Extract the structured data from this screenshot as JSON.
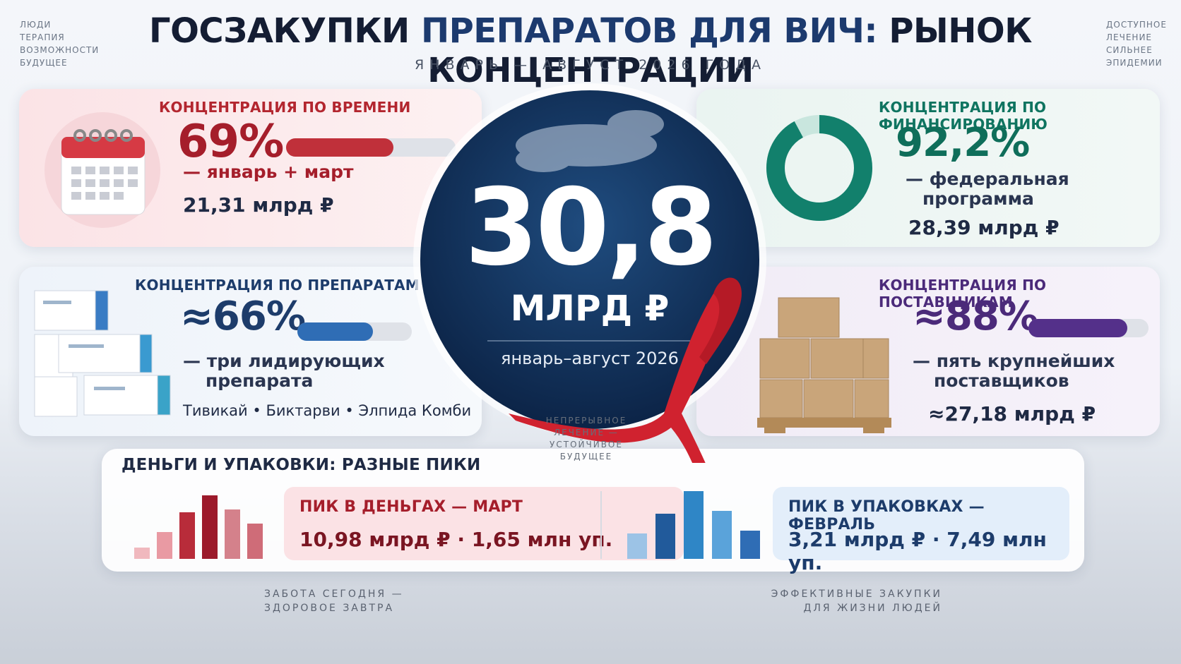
{
  "header": {
    "side_left": [
      "ЛЮДИ",
      "ТЕРАПИЯ",
      "ВОЗМОЖНОСТИ",
      "БУДУЩЕЕ"
    ],
    "side_right": [
      "ДОСТУПНОЕ",
      "ЛЕЧЕНИЕ",
      "СИЛЬНЕЕ",
      "ЭПИДЕМИИ"
    ],
    "title_part1": "ГОСЗАКУПКИ",
    "title_part2": "ПРЕПАРАТОВ ДЛЯ ВИЧ:",
    "title_part3": "РЫНОК КОНЦЕНТРАЦИИ",
    "subtitle": "ЯНВАРЬ — АВГУСТ 2026 ГОДА"
  },
  "center": {
    "value": "30,8",
    "unit": "МЛРД ₽",
    "period": "январь–август 2026",
    "motto": [
      "НЕПРЕРЫВНОЕ",
      "ЛЕЧЕНИЕ —",
      "УСТОЙЧИВОЕ",
      "БУДУЩЕЕ"
    ]
  },
  "cards": {
    "time": {
      "heading": "КОНЦЕНТРАЦИЯ ПО ВРЕМЕНИ",
      "value": "69%",
      "description": [
        "— январь + март"
      ],
      "amount": "21,31 млрд ₽"
    },
    "funding": {
      "heading": "КОНЦЕНТРАЦИЯ ПО ФИНАНСИРОВАНИЮ",
      "value": "92,2%",
      "description": [
        "— федеральная",
        "программа"
      ],
      "amount": "28,39 млрд ₽"
    },
    "drugs": {
      "heading": "КОНЦЕНТРАЦИЯ ПО ПРЕПАРАТАМ",
      "value": "≈66%",
      "description": [
        "— три лидирующих",
        "препарата"
      ],
      "items": [
        "Тивикай",
        "Биктарви",
        "Элпида Комби"
      ]
    },
    "suppliers": {
      "heading": "КОНЦЕНТРАЦИЯ ПО ПОСТАВЩИКАМ",
      "value": "≈88%",
      "description": [
        "— пять крупнейших",
        "поставщиков"
      ],
      "amount": "≈27,18 млрд ₽"
    }
  },
  "peaks": {
    "title": "ДЕНЬГИ И УПАКОВКИ: РАЗНЫЕ ПИКИ",
    "money": {
      "heading": "ПИК В ДЕНЬГАХ — МАРТ",
      "amount": "10,98 млрд ₽",
      "packs": "1,65 млн уп."
    },
    "packs": {
      "heading": "ПИК В УПАКОВКАХ — ФЕВРАЛЬ",
      "amount": "3,21 млрд ₽",
      "packs": "7,49 млн уп."
    }
  },
  "footer": {
    "left": [
      "ЗАБОТА СЕГОДНЯ —",
      "ЗДОРОВОЕ ЗАВТРА"
    ],
    "right": [
      "ЭФФЕКТИВНЫЕ ЗАКУПКИ",
      "ДЛЯ ЖИЗНИ ЛЮДЕЙ"
    ]
  }
}
